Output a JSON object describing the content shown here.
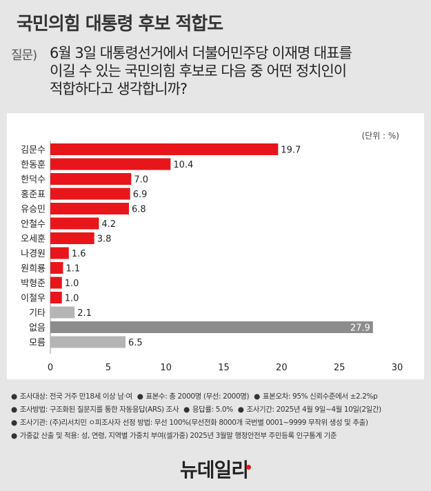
{
  "header": {
    "title": "국민의힘 대통령 후보 적합도",
    "question_prefix": "질문)",
    "question_lines": [
      "6월 3일 대통령선거에서 더불어민주당 이재명 대표를",
      "이길 수 있는 국민의힘 후보로 다음 중 어떤 정치인이",
      "적합하다고 생각합니까?"
    ]
  },
  "chart_data": {
    "type": "bar",
    "orientation": "horizontal",
    "unit_label": "(단위 : %)",
    "categories": [
      "김문수",
      "한동훈",
      "한덕수",
      "홍준표",
      "유승민",
      "안철수",
      "오세훈",
      "나경원",
      "원희룡",
      "박형준",
      "이철우",
      "기타",
      "없음",
      "모름"
    ],
    "values": [
      19.7,
      10.4,
      7.0,
      6.9,
      6.8,
      4.2,
      3.8,
      1.6,
      1.1,
      1.0,
      1.0,
      2.1,
      27.9,
      6.5
    ],
    "value_labels": [
      "19.7",
      "10.4",
      "7.0",
      "6.9",
      "6.8",
      "4.2",
      "3.8",
      "1.6",
      "1.1",
      "1.0",
      "1.0",
      "2.1",
      "27.9",
      "6.5"
    ],
    "bar_colors": [
      "#e8161b",
      "#e8161b",
      "#e8161b",
      "#e8161b",
      "#e8161b",
      "#e8161b",
      "#e8161b",
      "#e8161b",
      "#e8161b",
      "#e8161b",
      "#e8161b",
      "#b5b5b5",
      "#8c8c8c",
      "#b5b5b5"
    ],
    "xlim": [
      0,
      30
    ],
    "xticks": [
      0,
      5,
      10,
      15,
      20,
      25,
      30
    ],
    "xtick_labels": [
      "0",
      "5",
      "10",
      "15",
      "20",
      "25",
      "30"
    ],
    "inside_label_index": 12,
    "xlabel": "",
    "ylabel": ""
  },
  "footnotes": [
    [
      "조사대상: 전국 거주 만18세 이상 남·여",
      "표본수: 총 2000명 (무선: 2000명)",
      "표본오차: 95% 신뢰수준에서 ±2.2%p"
    ],
    [
      "조사방법: 구조화된 질문지를 통한 자동응답(ARS) 조사",
      "응답률: 5.0%",
      "조사기간: 2025년 4월 9일~4월 10일(2일간)"
    ],
    [
      "조사기관: (주)리서치민 ㅇ피조사자 선정 방법: 무선 100%(무선전화 8000개 국번별 0001~9999 무작위 생성 및 추출)"
    ],
    [
      "가중값 산출 및 적용: 성, 연령, 지역별 가중치 부여(셀가중) 2025년 3월말 행정안전부 주민등록 인구통계 기준"
    ]
  ],
  "footnote_bullet": "●",
  "logo": "뉴데일리"
}
